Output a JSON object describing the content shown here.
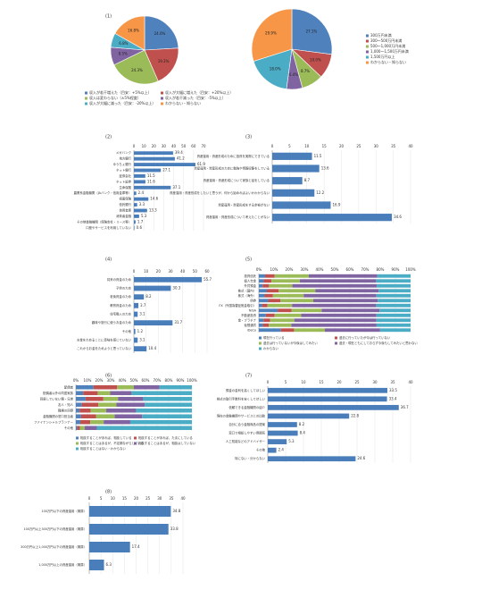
{
  "chart_data": [
    {
      "type": "pie",
      "label": "(1)",
      "categories": [
        "収入が若干増えた（目安：+5%以上）",
        "収入が大幅に増えた（目安：+20%以上）",
        "収入は変わらない（±5%程度）",
        "収入が若干減った（目安：-5%以上）",
        "収入が大幅に減った（目安：-20%以上）",
        "わからない・知らない"
      ],
      "values": [
        24.0,
        19.3,
        24.3,
        8.5,
        6.8,
        16.8
      ],
      "value_labels": [
        "24.0%",
        "19.3%",
        "24.3%",
        "8.5%",
        "6.8%",
        "16.8%"
      ],
      "colors": [
        "#4f81bd",
        "#c0504d",
        "#9bbb59",
        "#8064a2",
        "#4bacc6",
        "#f79646"
      ]
    },
    {
      "type": "pie",
      "categories": [
        "300万円未満",
        "300～500万円未満",
        "500～1,000万円未満",
        "1,000～1,500万円未満",
        "1,500万円以上",
        "わからない・知らない"
      ],
      "values": [
        27.1,
        10.0,
        8.7,
        6.4,
        18.0,
        29.9
      ],
      "value_labels": [
        "27.1%",
        "10.0%",
        "8.7%",
        "6.4%",
        "18.0%",
        "29.9%"
      ],
      "colors": [
        "#4f81bd",
        "#c0504d",
        "#9bbb59",
        "#8064a2",
        "#4bacc6",
        "#f79646"
      ]
    },
    {
      "type": "hbar",
      "label": "(2)",
      "categories": [
        "メガバンク",
        "地方銀行",
        "ゆうちょ銀行",
        "ネット銀行",
        "証券会社",
        "ネット証券",
        "生命保険",
        "農業系金融機関（JAバンク・信用金庫等）",
        "損害保険",
        "信託銀行",
        "信用金庫",
        "消費者金融",
        "その他金融機関（保険会社・リース等）",
        "口座やサービスを利用していない"
      ],
      "values": [
        39.4,
        41.2,
        61.9,
        27.1,
        11.5,
        11.6,
        37.1,
        2.4,
        14.6,
        3.3,
        13.3,
        5.3,
        1.7,
        0.6
      ],
      "xlim": [
        0,
        70
      ],
      "xticks": [
        0,
        10,
        20,
        30,
        40,
        50,
        60,
        70
      ],
      "color": "#4a7ebb"
    },
    {
      "type": "hbar",
      "label": "(3)",
      "categories": [
        "資産運用・資産形成のために投資を実際にできている",
        "資産運用・資産形成のために勉強や情報収集をしている",
        "資産運用・資産形成について家族と話をしている",
        "資産運用・資産形成をしたいと思うが、何から始めればよいかわからない",
        "資産運用・資産形成をする余裕がない",
        "資産運用・資産形成について考えたことがない"
      ],
      "values": [
        11.5,
        13.6,
        8.7,
        12.2,
        16.9,
        34.6
      ],
      "xlim": [
        0,
        40
      ],
      "xticks": [
        0,
        5,
        10,
        15,
        20,
        25,
        30,
        35,
        40
      ],
      "color": "#4a7ebb"
    },
    {
      "type": "hbar",
      "label": "(4)",
      "categories": [
        "将来の資金のため",
        "子供のため",
        "老後資金のため",
        "教育資金のため",
        "住宅購入のため",
        "趣味や旅行に使うお金のため",
        "その他",
        "お金をためることに意味を感じていない",
        "これからお金をためようと思っていない"
      ],
      "values": [
        55.7,
        30.3,
        8.2,
        3.7,
        3.1,
        31.7,
        1.2,
        3.1,
        10.4
      ],
      "xlim": [
        0,
        60
      ],
      "xticks": [
        0,
        10,
        20,
        30,
        40,
        50,
        60
      ],
      "color": "#4a7ebb"
    },
    {
      "type": "stacked",
      "label": "(5)",
      "categories": [
        "投資信託",
        "個人年金",
        "外貨預金",
        "株式（国内）",
        "株式（海外）",
        "債券",
        "FX（外国為替証拠金取引）",
        "NISA",
        "不動産投資",
        "金・プラチナ",
        "仮想通貨",
        "iDeCo"
      ],
      "series": [
        {
          "name": "現在行っている",
          "color": "#4f81bd",
          "values": [
            4.1,
            3.2,
            2.5,
            5.3,
            3.8,
            6.2,
            2.1,
            12.4,
            4.6,
            3.1,
            2.7,
            14.5
          ]
        },
        {
          "name": "過去に行っていたが今は行っていない",
          "color": "#c0504d",
          "values": [
            6.3,
            5.1,
            4.2,
            7.8,
            5.5,
            8.1,
            3.6,
            9.2,
            5.8,
            4.4,
            3.9,
            8.7
          ]
        },
        {
          "name": "過去は行っていないが今後はしてみたい",
          "color": "#9bbb59",
          "values": [
            22.5,
            18.7,
            15.4,
            24.1,
            20.3,
            21.6,
            16.2,
            19.8,
            17.5,
            15.9,
            14.8,
            20.3
          ]
        },
        {
          "name": "過去・現在ともにしておらず今後もしてみたいと思わない",
          "color": "#8064a2",
          "values": [
            45.2,
            50.3,
            55.6,
            41.7,
            47.9,
            42.5,
            55.4,
            38.1,
            49.6,
            54.1,
            56.2,
            36.4
          ]
        },
        {
          "name": "わからない",
          "color": "#4bacc6",
          "values": [
            21.9,
            22.7,
            22.3,
            21.1,
            22.5,
            21.6,
            22.7,
            20.5,
            22.5,
            22.5,
            22.4,
            20.1
          ]
        }
      ],
      "xlim": [
        0,
        100
      ],
      "xticks": [
        {
          "value": 0,
          "label": "0%"
        },
        {
          "value": 10,
          "label": "10%"
        },
        {
          "value": 20,
          "label": "20%"
        },
        {
          "value": 30,
          "label": "30%"
        },
        {
          "value": 40,
          "label": "40%"
        },
        {
          "value": 50,
          "label": "50%"
        },
        {
          "value": 60,
          "label": "60%"
        },
        {
          "value": 70,
          "label": "70%"
        },
        {
          "value": 80,
          "label": "80%"
        },
        {
          "value": 90,
          "label": "90%"
        },
        {
          "value": 100,
          "label": "100%"
        }
      ]
    },
    {
      "type": "stacked",
      "label": "(6)",
      "categories": [
        "配偶者",
        "配偶者以外の同居家族",
        "同居していない親・兄弟",
        "友人・知人",
        "職場の同僚",
        "金融機関の窓口担当者",
        "ファイナンシャルプランナー",
        "その他"
      ],
      "series": [
        {
          "name": "相談することがあれば、相談している",
          "color": "#4f81bd",
          "values": [
            15.2,
            6.3,
            8.4,
            5.1,
            3.2,
            4.5,
            3.8,
            1.2
          ]
        },
        {
          "name": "相談することがあれば、たまにしている",
          "color": "#c0504d",
          "values": [
            20.4,
            12.5,
            15.3,
            14.2,
            9.6,
            12.8,
            8.7,
            2.3
          ]
        },
        {
          "name": "相談することはあるが、不定期ながらしている",
          "color": "#9bbb59",
          "values": [
            14.3,
            10.8,
            12.6,
            15.7,
            13.4,
            16.2,
            11.5,
            4.1
          ]
        },
        {
          "name": "相談することはあるが、相談はしていない",
          "color": "#8064a2",
          "values": [
            22.1,
            18.4,
            21.7,
            24.3,
            25.8,
            23.6,
            22.9,
            10.5
          ]
        },
        {
          "name": "相談することはない・わからない",
          "color": "#4bacc6",
          "values": [
            28,
            52,
            42,
            40.7,
            48,
            42.9,
            53.1,
            81.9
          ]
        }
      ],
      "xlim": [
        0,
        100
      ],
      "xticks": [
        {
          "value": 0,
          "label": "0%"
        },
        {
          "value": 10,
          "label": "10%"
        },
        {
          "value": 20,
          "label": "20%"
        },
        {
          "value": 30,
          "label": "30%"
        },
        {
          "value": 40,
          "label": "40%"
        },
        {
          "value": 50,
          "label": "50%"
        },
        {
          "value": 60,
          "label": "60%"
        },
        {
          "value": 70,
          "label": "70%"
        },
        {
          "value": 80,
          "label": "80%"
        },
        {
          "value": 90,
          "label": "90%"
        },
        {
          "value": 100,
          "label": "100%"
        }
      ]
    },
    {
      "type": "hbar",
      "label": "(7)",
      "categories": [
        "預金の金利を高くしてほしい",
        "株式の取引手数料を安くしてほしい",
        "信頼できる金融機関の紹介",
        "現在の金融機関やサービスとの比較",
        "自分に合う金融商品の提案",
        "窓口で相談しやすい雰囲気",
        "人工知能などのアドバイザー",
        "その他",
        "特にない・分からない"
      ],
      "values": [
        33.5,
        33.4,
        36.7,
        22.8,
        8.2,
        8.4,
        5.3,
        2.4,
        24.6
      ],
      "xlim": [
        0,
        40
      ],
      "xticks": [
        0,
        5,
        10,
        15,
        20,
        25,
        30,
        35,
        40
      ],
      "color": "#4a7ebb"
    },
    {
      "type": "hbar",
      "label": "(8)",
      "categories": [
        "100万円以下の資産運用（概算）",
        "100万円以上300万円以下の資産運用（概算）",
        "300万円以上1,000万円以下の資産運用（概算）",
        "1,000万円以上の資産運用（概算）"
      ],
      "values": [
        34.8,
        33.8,
        17.4,
        6.3
      ],
      "xlim": [
        0,
        40
      ],
      "xticks": [
        0,
        5,
        10,
        15,
        20,
        25,
        30,
        35,
        40
      ],
      "color": "#4a7ebb"
    }
  ]
}
